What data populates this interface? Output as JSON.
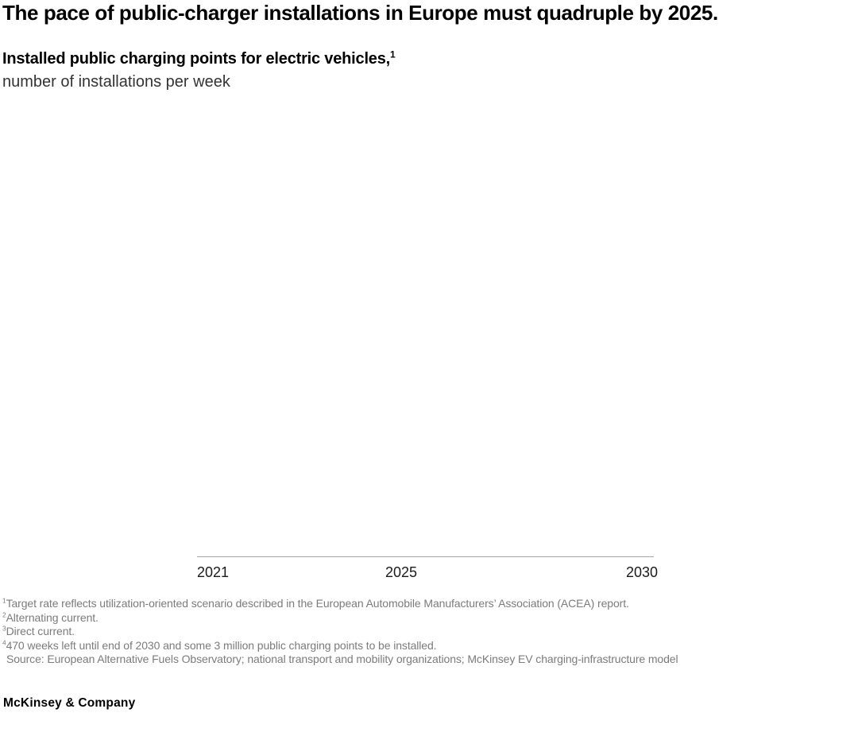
{
  "page": {
    "exhibit_title": "The pace of public-charger installations in Europe must quadruple by 2025.",
    "footer_logo": "McKinsey & Company"
  },
  "chart": {
    "title": "Installed public charging points for electric vehicles,",
    "title_superscript": "1",
    "unit_label": "number of installations per week"
  },
  "chart_data": {
    "type": "line",
    "title": "Installed public charging points for electric vehicles",
    "ylabel": "number of installations per week",
    "xlabel": "",
    "x_ticks": [
      "2021",
      "2025",
      "2030"
    ],
    "x_axis_range": [
      2021,
      2030
    ],
    "series": [],
    "grid": false,
    "legend_position": "none",
    "plot_area_empty": true
  },
  "footnotes": [
    {
      "marker": "1",
      "text": "Target rate reflects utilization-oriented scenario described in the European Automobile Manufacturers’ Association (ACEA) report."
    },
    {
      "marker": "2",
      "text": "Alternating current."
    },
    {
      "marker": "3",
      "text": "Direct current."
    },
    {
      "marker": "4",
      "text": "470 weeks left until end of 2030 and some 3 million public charging points to be installed."
    },
    {
      "marker": "",
      "text": "Source: European Alternative Fuels Observatory; national transport and mobility organizations; McKinsey EV charging-infrastructure model"
    }
  ],
  "colors": {
    "background": "#ffffff",
    "text_primary": "#000000",
    "text_secondary": "#333333",
    "footnote_gray": "#7b7b7b",
    "axis_line": "#a6a6a6"
  }
}
